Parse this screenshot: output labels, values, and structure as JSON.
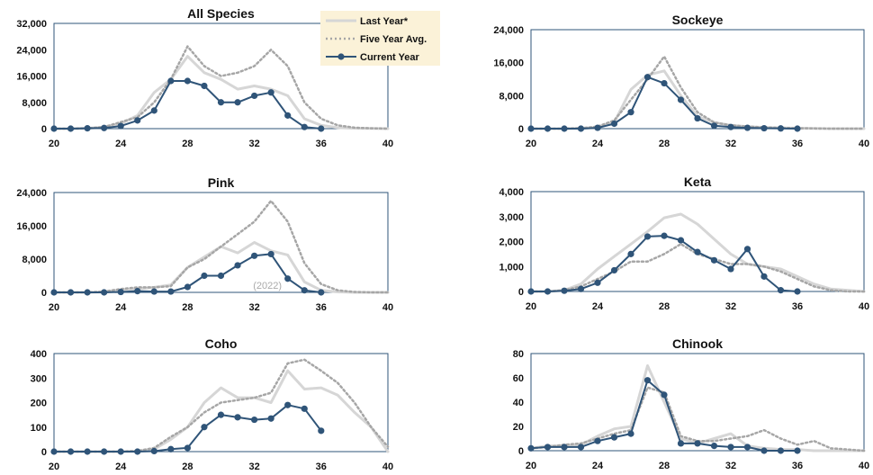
{
  "chart_data": [
    {
      "type": "line",
      "title": "All Species",
      "x_ticks": [
        20,
        24,
        28,
        32,
        36,
        40
      ],
      "xlim": [
        20,
        40
      ],
      "ylim": [
        0,
        32000
      ],
      "y_tick_labels": [
        "0",
        "8,000",
        "16,000",
        "24,000",
        "32,000"
      ],
      "y_ticks": [
        0,
        8000,
        16000,
        24000,
        32000
      ],
      "legend": "top-right",
      "series": [
        {
          "name": "Last Year*",
          "style": "solid",
          "color": "#d6d6d6",
          "x": [
            20,
            21,
            22,
            23,
            24,
            25,
            26,
            27,
            28,
            29,
            30,
            31,
            32,
            33,
            34,
            35,
            36,
            37,
            38,
            39,
            40
          ],
          "y": [
            0,
            0,
            100,
            500,
            1500,
            4000,
            11000,
            15000,
            22000,
            17000,
            15000,
            12000,
            13000,
            12000,
            10000,
            3000,
            1000,
            300,
            100,
            50,
            0
          ]
        },
        {
          "name": "Five Year Avg.",
          "style": "dotted",
          "color": "#a6a6a6",
          "x": [
            20,
            21,
            22,
            23,
            24,
            25,
            26,
            27,
            28,
            29,
            30,
            31,
            32,
            33,
            34,
            35,
            36,
            37,
            38,
            39,
            40
          ],
          "y": [
            0,
            0,
            100,
            500,
            2000,
            3500,
            8000,
            15000,
            25000,
            19000,
            16000,
            17000,
            19000,
            24000,
            19000,
            8000,
            3000,
            1000,
            300,
            100,
            0
          ]
        },
        {
          "name": "Current Year",
          "style": "solid-marker",
          "color": "#2f5478",
          "x": [
            20,
            21,
            22,
            23,
            24,
            25,
            26,
            27,
            28,
            29,
            30,
            31,
            32,
            33,
            34,
            35,
            36
          ],
          "y": [
            0,
            0,
            100,
            200,
            800,
            2500,
            5500,
            14500,
            14500,
            13000,
            8000,
            8000,
            10000,
            11000,
            4000,
            500,
            0
          ]
        }
      ]
    },
    {
      "type": "line",
      "title": "Sockeye",
      "x_ticks": [
        20,
        24,
        28,
        32,
        36,
        40
      ],
      "xlim": [
        20,
        40
      ],
      "ylim": [
        0,
        24000
      ],
      "y_tick_labels": [
        "0",
        "8,000",
        "16,000",
        "24,000"
      ],
      "y_ticks": [
        0,
        8000,
        16000,
        24000
      ],
      "series": [
        {
          "name": "Last Year*",
          "style": "solid",
          "color": "#d6d6d6",
          "x": [
            20,
            21,
            22,
            23,
            24,
            25,
            26,
            27,
            28,
            29,
            30,
            31,
            32,
            33,
            34,
            35,
            36,
            37,
            38,
            39,
            40
          ],
          "y": [
            0,
            0,
            0,
            100,
            300,
            1500,
            9500,
            13000,
            14000,
            8000,
            3000,
            1500,
            800,
            500,
            300,
            200,
            100,
            50,
            0,
            0,
            0
          ]
        },
        {
          "name": "Five Year Avg.",
          "style": "dotted",
          "color": "#a6a6a6",
          "x": [
            20,
            21,
            22,
            23,
            24,
            25,
            26,
            27,
            28,
            29,
            30,
            31,
            32,
            33,
            34,
            35,
            36,
            37,
            38,
            39,
            40
          ],
          "y": [
            0,
            0,
            0,
            100,
            500,
            2000,
            7000,
            12000,
            17500,
            10000,
            4000,
            1500,
            800,
            500,
            300,
            200,
            100,
            50,
            0,
            0,
            0
          ]
        },
        {
          "name": "Current Year",
          "style": "solid-marker",
          "color": "#2f5478",
          "x": [
            20,
            21,
            22,
            23,
            24,
            25,
            26,
            27,
            28,
            29,
            30,
            31,
            32,
            33,
            34,
            35,
            36
          ],
          "y": [
            0,
            0,
            0,
            0,
            200,
            1200,
            4000,
            12500,
            11000,
            7000,
            2500,
            700,
            400,
            200,
            100,
            50,
            0
          ]
        }
      ]
    },
    {
      "type": "line",
      "title": "Pink",
      "x_ticks": [
        20,
        24,
        28,
        32,
        36,
        40
      ],
      "xlim": [
        20,
        40
      ],
      "ylim": [
        0,
        24000
      ],
      "y_tick_labels": [
        "0",
        "8,000",
        "16,000",
        "24,000"
      ],
      "y_ticks": [
        0,
        8000,
        16000,
        24000
      ],
      "annotation": "(2022)",
      "series": [
        {
          "name": "Last Year*",
          "style": "solid",
          "color": "#d6d6d6",
          "x": [
            20,
            21,
            22,
            23,
            24,
            25,
            26,
            27,
            28,
            29,
            30,
            31,
            32,
            33,
            34,
            35,
            36,
            37,
            38,
            39,
            40
          ],
          "y": [
            0,
            0,
            0,
            100,
            500,
            800,
            1200,
            1800,
            6000,
            8500,
            11000,
            9500,
            12000,
            10000,
            9000,
            2500,
            500,
            100,
            0,
            0,
            0
          ]
        },
        {
          "name": "Five Year Avg.",
          "style": "dotted",
          "color": "#a6a6a6",
          "x": [
            20,
            21,
            22,
            23,
            24,
            25,
            26,
            27,
            28,
            29,
            30,
            31,
            32,
            33,
            34,
            35,
            36,
            37,
            38,
            39,
            40
          ],
          "y": [
            0,
            0,
            0,
            200,
            800,
            1200,
            1200,
            1500,
            6000,
            8000,
            11000,
            14000,
            17000,
            22000,
            17000,
            7000,
            2000,
            500,
            100,
            0,
            0
          ]
        },
        {
          "name": "Current Year",
          "style": "solid-marker",
          "color": "#2f5478",
          "x": [
            20,
            21,
            22,
            23,
            24,
            25,
            26,
            27,
            28,
            29,
            30,
            31,
            32,
            33,
            34,
            35,
            36
          ],
          "y": [
            0,
            0,
            0,
            0,
            100,
            300,
            200,
            200,
            1300,
            4000,
            4000,
            6500,
            8800,
            9200,
            3300,
            500,
            0
          ]
        }
      ]
    },
    {
      "type": "line",
      "title": "Keta",
      "x_ticks": [
        20,
        24,
        28,
        32,
        36,
        40
      ],
      "xlim": [
        20,
        40
      ],
      "ylim": [
        0,
        4000
      ],
      "y_tick_labels": [
        "0",
        "1,000",
        "2,000",
        "3,000",
        "4,000"
      ],
      "y_ticks": [
        0,
        1000,
        2000,
        3000,
        4000
      ],
      "series": [
        {
          "name": "Last Year*",
          "style": "solid",
          "color": "#d6d6d6",
          "x": [
            20,
            21,
            22,
            23,
            24,
            25,
            26,
            27,
            28,
            29,
            30,
            31,
            32,
            33,
            34,
            35,
            36,
            37,
            38,
            39,
            40
          ],
          "y": [
            0,
            0,
            50,
            300,
            900,
            1400,
            1900,
            2400,
            2950,
            3100,
            2700,
            2100,
            1500,
            1100,
            1000,
            900,
            600,
            300,
            100,
            50,
            0
          ]
        },
        {
          "name": "Five Year Avg.",
          "style": "dotted",
          "color": "#a6a6a6",
          "x": [
            20,
            21,
            22,
            23,
            24,
            25,
            26,
            27,
            28,
            29,
            30,
            31,
            32,
            33,
            34,
            35,
            36,
            37,
            38,
            39,
            40
          ],
          "y": [
            0,
            0,
            50,
            200,
            500,
            800,
            1200,
            1200,
            1500,
            1900,
            1500,
            1300,
            1100,
            1100,
            1000,
            800,
            500,
            200,
            50,
            0,
            0
          ]
        },
        {
          "name": "Current Year",
          "style": "solid-marker",
          "color": "#2f5478",
          "x": [
            20,
            21,
            22,
            23,
            24,
            25,
            26,
            27,
            28,
            29,
            30,
            31,
            32,
            33,
            34,
            35,
            36
          ],
          "y": [
            0,
            0,
            30,
            100,
            350,
            850,
            1500,
            2200,
            2230,
            2050,
            1580,
            1250,
            900,
            1700,
            600,
            50,
            0
          ]
        }
      ]
    },
    {
      "type": "line",
      "title": "Coho",
      "x_ticks": [
        20,
        24,
        28,
        32,
        36,
        40
      ],
      "xlim": [
        20,
        40
      ],
      "ylim": [
        0,
        400
      ],
      "y_tick_labels": [
        "0",
        "100",
        "200",
        "300",
        "400"
      ],
      "y_ticks": [
        0,
        100,
        200,
        300,
        400
      ],
      "series": [
        {
          "name": "Last Year*",
          "style": "solid",
          "color": "#d6d6d6",
          "x": [
            20,
            21,
            22,
            23,
            24,
            25,
            26,
            27,
            28,
            29,
            30,
            31,
            32,
            33,
            34,
            35,
            36,
            37,
            38,
            39,
            40
          ],
          "y": [
            0,
            0,
            0,
            0,
            0,
            2,
            10,
            50,
            100,
            200,
            260,
            220,
            220,
            200,
            330,
            255,
            260,
            230,
            160,
            100,
            0
          ]
        },
        {
          "name": "Five Year Avg.",
          "style": "dotted",
          "color": "#a6a6a6",
          "x": [
            20,
            21,
            22,
            23,
            24,
            25,
            26,
            27,
            28,
            29,
            30,
            31,
            32,
            33,
            34,
            35,
            36,
            37,
            38,
            39,
            40
          ],
          "y": [
            0,
            0,
            0,
            0,
            0,
            3,
            15,
            60,
            100,
            160,
            200,
            210,
            220,
            240,
            360,
            375,
            330,
            280,
            200,
            100,
            20
          ]
        },
        {
          "name": "Current Year",
          "style": "solid-marker",
          "color": "#2f5478",
          "x": [
            20,
            21,
            22,
            23,
            24,
            25,
            26,
            27,
            28,
            29,
            30,
            31,
            32,
            33,
            34,
            35,
            36
          ],
          "y": [
            0,
            0,
            0,
            0,
            0,
            0,
            2,
            10,
            15,
            100,
            150,
            140,
            130,
            135,
            190,
            175,
            85
          ]
        }
      ]
    },
    {
      "type": "line",
      "title": "Chinook",
      "x_ticks": [
        20,
        24,
        28,
        32,
        36,
        40
      ],
      "xlim": [
        20,
        40
      ],
      "ylim": [
        0,
        80
      ],
      "y_tick_labels": [
        "0",
        "20",
        "40",
        "60",
        "80"
      ],
      "y_ticks": [
        0,
        20,
        40,
        60,
        80
      ],
      "series": [
        {
          "name": "Last Year*",
          "style": "solid",
          "color": "#d6d6d6",
          "x": [
            20,
            21,
            22,
            23,
            24,
            25,
            26,
            27,
            28,
            29,
            30,
            31,
            32,
            33,
            34,
            35,
            36,
            37,
            38,
            39,
            40
          ],
          "y": [
            2,
            4,
            4,
            5,
            12,
            18,
            20,
            70,
            40,
            10,
            6,
            10,
            14,
            4,
            2,
            1,
            1,
            0,
            0,
            0,
            0
          ]
        },
        {
          "name": "Five Year Avg.",
          "style": "dotted",
          "color": "#a6a6a6",
          "x": [
            20,
            21,
            22,
            23,
            24,
            25,
            26,
            27,
            28,
            29,
            30,
            31,
            32,
            33,
            34,
            35,
            36,
            37,
            38,
            39,
            40
          ],
          "y": [
            2,
            3,
            5,
            6,
            10,
            14,
            17,
            52,
            48,
            12,
            8,
            8,
            10,
            12,
            17,
            10,
            5,
            8,
            2,
            1,
            0
          ]
        },
        {
          "name": "Current Year",
          "style": "solid-marker",
          "color": "#2f5478",
          "x": [
            20,
            21,
            22,
            23,
            24,
            25,
            26,
            27,
            28,
            29,
            30,
            31,
            32,
            33,
            34,
            35,
            36
          ],
          "y": [
            2,
            3,
            3,
            3,
            8,
            11,
            14,
            58,
            46,
            6,
            6,
            4,
            3,
            3,
            0,
            0,
            0
          ]
        }
      ]
    }
  ]
}
